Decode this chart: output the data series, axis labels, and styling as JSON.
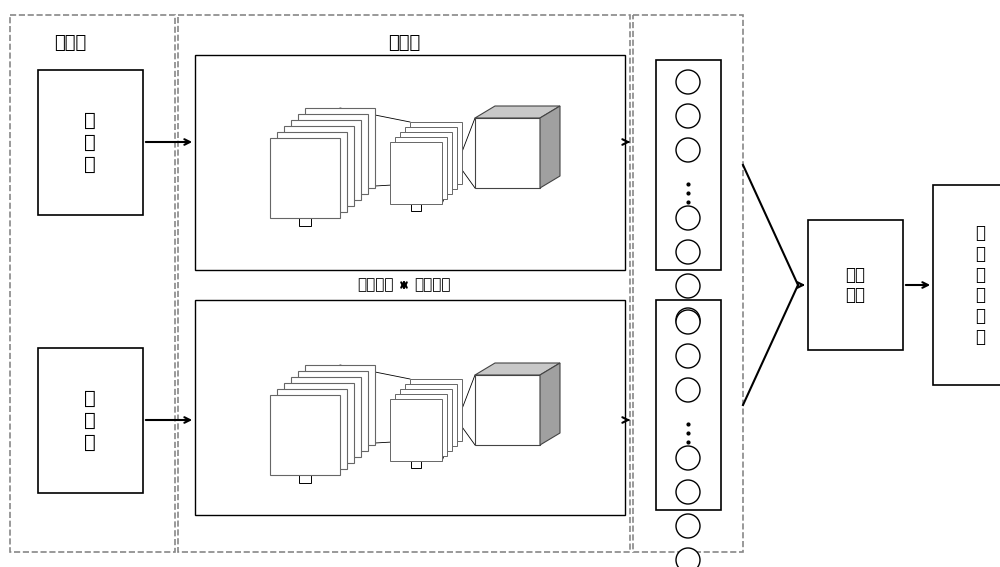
{
  "fig_width": 10.0,
  "fig_height": 5.67,
  "dpi": 100,
  "labels": {
    "input_layer": "输入层",
    "subnet": "子网络",
    "struct_same": "结构相同",
    "weight_share": "权值共享",
    "tfmap": "时\n频\n图",
    "euclid": "欧式\n距离",
    "fault": "故\n障\n类\n型\n判\n别"
  },
  "colors": {
    "bg": "#ffffff",
    "box_edge": "#000000",
    "dash_edge": "#888888",
    "arrow": "#000000",
    "neuron_fill": "#ffffff",
    "cnn_face": "#d0d0d0",
    "cnn_top": "#e8e8e8",
    "cnn_side": "#a0a0a0",
    "stack_edge": "#555555",
    "stack_fill": "#ffffff"
  }
}
